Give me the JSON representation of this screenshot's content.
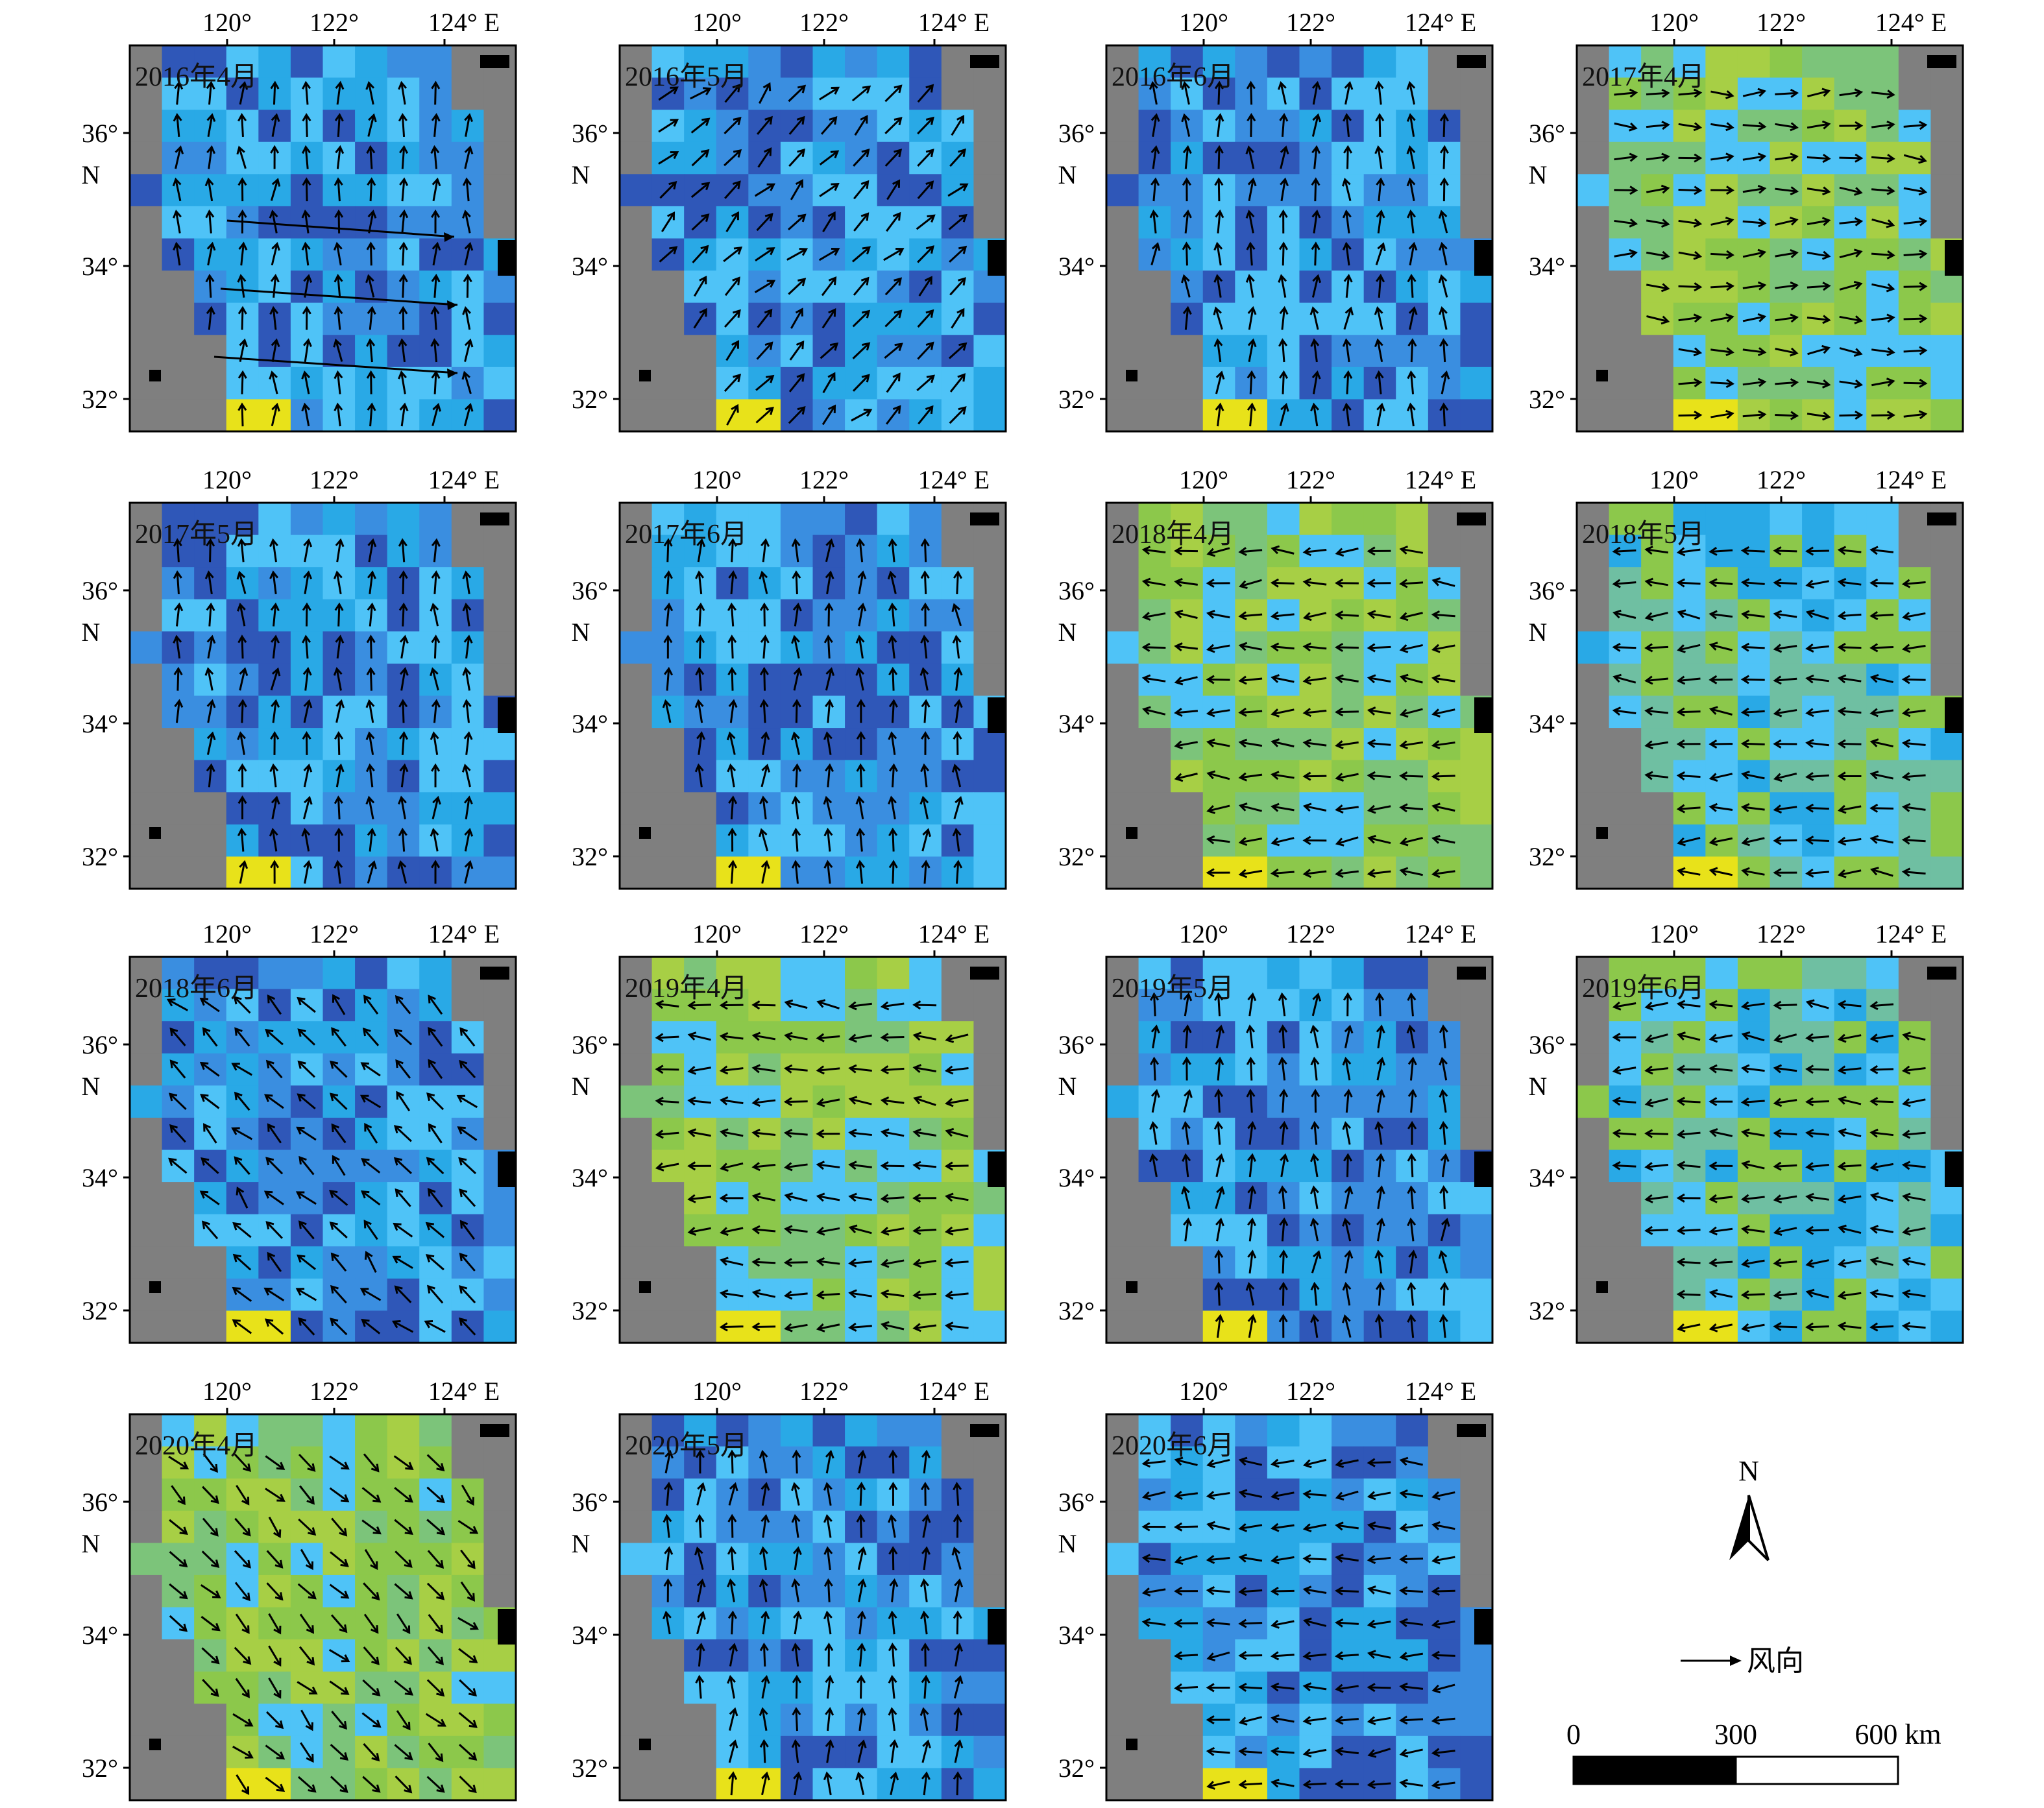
{
  "map": {
    "x_ticks": [
      "120°",
      "122°",
      "124° E"
    ],
    "y_ticks": [
      "36°",
      "34°",
      "32°"
    ],
    "y_unit": "N",
    "colors": {
      "land": "#7f7f7f",
      "water_low": "#4fc3f7",
      "water_mid": "#29a9e6",
      "water_high": "#2f57b8",
      "water_green": "#8cc84b",
      "water_yellow": "#e8e21a",
      "island": "#000000",
      "arrow": "#000000"
    },
    "panels": [
      {
        "label": "2016年4月",
        "wind_dir": "n",
        "tone": "blue",
        "flow_lines": true
      },
      {
        "label": "2016年5月",
        "wind_dir": "ne",
        "tone": "blue",
        "flow_lines": false
      },
      {
        "label": "2016年6月",
        "wind_dir": "n",
        "tone": "blue",
        "flow_lines": false
      },
      {
        "label": "2017年4月",
        "wind_dir": "e",
        "tone": "green",
        "flow_lines": false
      },
      {
        "label": "2017年5月",
        "wind_dir": "n",
        "tone": "blue",
        "flow_lines": false
      },
      {
        "label": "2017年6月",
        "wind_dir": "n",
        "tone": "blue",
        "flow_lines": false
      },
      {
        "label": "2018年4月",
        "wind_dir": "w",
        "tone": "green",
        "flow_lines": false
      },
      {
        "label": "2018年5月",
        "wind_dir": "w",
        "tone": "mixed",
        "flow_lines": false
      },
      {
        "label": "2018年6月",
        "wind_dir": "nw",
        "tone": "blue",
        "flow_lines": false
      },
      {
        "label": "2019年4月",
        "wind_dir": "w",
        "tone": "green",
        "flow_lines": false
      },
      {
        "label": "2019年5月",
        "wind_dir": "n",
        "tone": "blue",
        "flow_lines": false
      },
      {
        "label": "2019年6月",
        "wind_dir": "w",
        "tone": "mixed",
        "flow_lines": false
      },
      {
        "label": "2020年4月",
        "wind_dir": "se",
        "tone": "green",
        "flow_lines": false
      },
      {
        "label": "2020年5月",
        "wind_dir": "n",
        "tone": "blue",
        "flow_lines": false
      },
      {
        "label": "2020年6月",
        "wind_dir": "w",
        "tone": "blue",
        "flow_lines": false
      }
    ]
  },
  "legend": {
    "north_label": "N",
    "wind_label": "风向",
    "scale_ticks": [
      "0",
      "300",
      "600 km"
    ]
  }
}
